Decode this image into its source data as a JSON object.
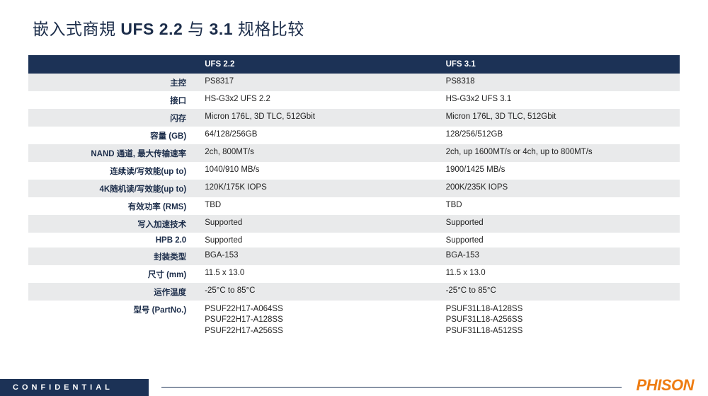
{
  "title_prefix": "嵌入式商規 ",
  "title_bold": "UFS 2.2",
  "title_mid": " 与 ",
  "title_bold2": "3.1",
  "title_suffix": " 规格比较",
  "columns": {
    "c1": "UFS 2.2",
    "c2": "UFS 3.1"
  },
  "rows": [
    {
      "label": "主控",
      "c1": "PS8317",
      "c2": "PS8318"
    },
    {
      "label": "接口",
      "c1": "HS-G3x2 UFS 2.2",
      "c2": "HS-G3x2 UFS 3.1"
    },
    {
      "label": "闪存",
      "c1": "Micron 176L, 3D TLC, 512Gbit",
      "c2": "Micron 176L, 3D TLC, 512Gbit"
    },
    {
      "label": "容量 (GB)",
      "c1": "64/128/256GB",
      "c2": "128/256/512GB"
    },
    {
      "label": "NAND 通道, 最大传输速率",
      "c1": "2ch, 800MT/s",
      "c2": "2ch, up 1600MT/s or 4ch, up to 800MT/s"
    },
    {
      "label": "连续读/写效能(up to)",
      "c1": "1040/910 MB/s",
      "c2": "1900/1425 MB/s"
    },
    {
      "label": "4K随机读/写效能(up to)",
      "c1": "120K/175K IOPS",
      "c2": "200K/235K IOPS"
    },
    {
      "label": "有效功率 (RMS)",
      "c1": "TBD",
      "c2": "TBD"
    },
    {
      "label": "写入加速技术",
      "c1": "Supported",
      "c2": "Supported"
    },
    {
      "label": "HPB 2.0",
      "c1": "Supported",
      "c2": "Supported"
    },
    {
      "label": "封装类型",
      "c1": "BGA-153",
      "c2": "BGA-153"
    },
    {
      "label": "尺寸 (mm)",
      "c1": "11.5 x 13.0",
      "c2": "11.5 x 13.0"
    },
    {
      "label": "运作温度",
      "c1": "-25°C to 85°C",
      "c2": "-25°C to 85°C"
    },
    {
      "label": "型号 (PartNo.)",
      "c1": "PSUF22H17-A064SS\nPSUF22H17-A128SS\nPSUF22H17-A256SS",
      "c2": "PSUF31L18-A128SS\nPSUF31L18-A256SS\nPSUF31L18-A512SS"
    }
  ],
  "footer": {
    "confidential": "CONFIDENTIAL",
    "brand": "PHISON"
  },
  "colors": {
    "header_bg": "#1c3256",
    "row_even_bg": "#e9eaeb",
    "row_odd_bg": "#ffffff",
    "title_color": "#1c2d4a",
    "brand_color": "#ee7c12"
  }
}
